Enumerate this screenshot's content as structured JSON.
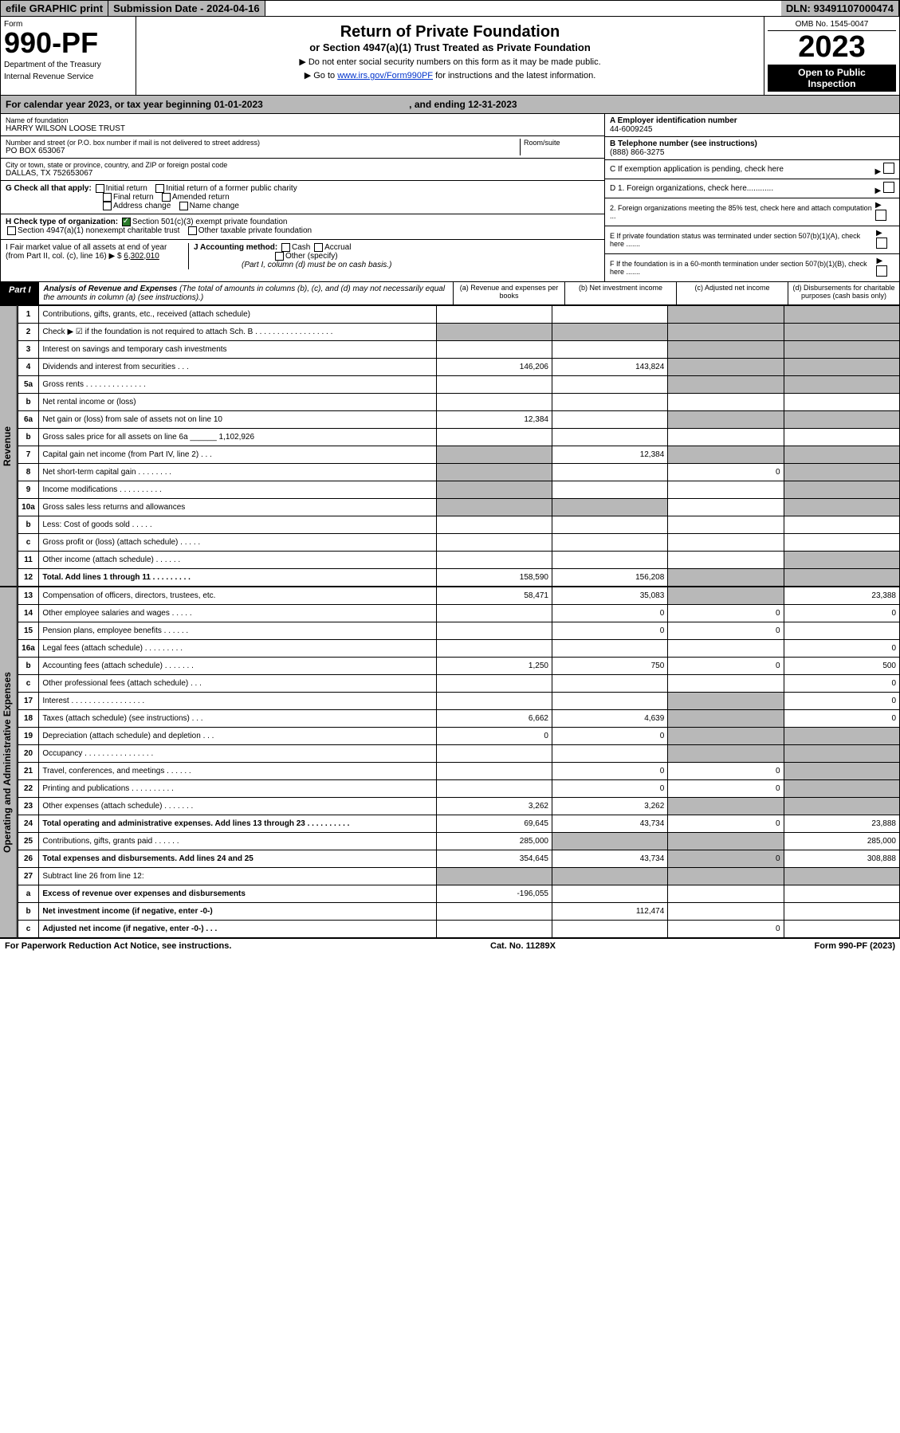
{
  "top": {
    "efile": "efile GRAPHIC print",
    "sub_date": "Submission Date - 2024-04-16",
    "dln": "DLN: 93491107000474"
  },
  "header": {
    "form_word": "Form",
    "form_num": "990-PF",
    "dept1": "Department of the Treasury",
    "dept2": "Internal Revenue Service",
    "title1": "Return of Private Foundation",
    "title2": "or Section 4947(a)(1) Trust Treated as Private Foundation",
    "instr1": "▶ Do not enter social security numbers on this form as it may be made public.",
    "instr2_pre": "▶ Go to ",
    "instr2_link": "www.irs.gov/Form990PF",
    "instr2_post": " for instructions and the latest information.",
    "omb": "OMB No. 1545-0047",
    "year": "2023",
    "open1": "Open to Public",
    "open2": "Inspection"
  },
  "cal": {
    "text": "For calendar year 2023, or tax year beginning 01-01-2023",
    "mid": ", and ending 12-31-2023"
  },
  "id": {
    "name_lbl": "Name of foundation",
    "name": "HARRY WILSON LOOSE TRUST",
    "addr_lbl": "Number and street (or P.O. box number if mail is not delivered to street address)",
    "room_lbl": "Room/suite",
    "addr": "PO BOX 653067",
    "city_lbl": "City or town, state or province, country, and ZIP or foreign postal code",
    "city": "DALLAS, TX  752653067",
    "ein_lbl": "A Employer identification number",
    "ein": "44-6009245",
    "tel_lbl": "B Telephone number (see instructions)",
    "tel": "(888) 866-3275",
    "c_lbl": "C If exemption application is pending, check here",
    "d1_lbl": "D 1. Foreign organizations, check here............",
    "d2_lbl": "2. Foreign organizations meeting the 85% test, check here and attach computation ...",
    "e_lbl": "E If private foundation status was terminated under section 507(b)(1)(A), check here .......",
    "f_lbl": "F If the foundation is in a 60-month termination under section 507(b)(1)(B), check here ......."
  },
  "g": {
    "lbl": "G Check all that apply:",
    "o1": "Initial return",
    "o2": "Initial return of a former public charity",
    "o3": "Final return",
    "o4": "Amended return",
    "o5": "Address change",
    "o6": "Name change"
  },
  "h": {
    "lbl": "H Check type of organization:",
    "o1": "Section 501(c)(3) exempt private foundation",
    "o2": "Section 4947(a)(1) nonexempt charitable trust",
    "o3": "Other taxable private foundation"
  },
  "i": {
    "lbl": "I Fair market value of all assets at end of year (from Part II, col. (c), line 16) ▶ $",
    "val": "6,302,010"
  },
  "j": {
    "lbl": "J Accounting method:",
    "o1": "Cash",
    "o2": "Accrual",
    "o3": "Other (specify)",
    "note": "(Part I, column (d) must be on cash basis.)"
  },
  "part1": {
    "lbl": "Part I",
    "title": "Analysis of Revenue and Expenses",
    "sub": "(The total of amounts in columns (b), (c), and (d) may not necessarily equal the amounts in column (a) (see instructions).)",
    "ca": "(a) Revenue and expenses per books",
    "cb": "(b) Net investment income",
    "cc": "(c) Adjusted net income",
    "cd": "(d) Disbursements for charitable purposes (cash basis only)"
  },
  "side": {
    "rev": "Revenue",
    "exp": "Operating and Administrative Expenses"
  },
  "rows": {
    "1": {
      "n": "1",
      "d": "Contributions, gifts, grants, etc., received (attach schedule)"
    },
    "2": {
      "n": "2",
      "d": "Check ▶ ☑ if the foundation is not required to attach Sch. B  . . . . . . . . . . . . . . . . . ."
    },
    "3": {
      "n": "3",
      "d": "Interest on savings and temporary cash investments"
    },
    "4": {
      "n": "4",
      "d": "Dividends and interest from securities  . . .",
      "a": "146,206",
      "b": "143,824"
    },
    "5a": {
      "n": "5a",
      "d": "Gross rents  . . . . . . . . . . . . . ."
    },
    "5b": {
      "n": "b",
      "d": "Net rental income or (loss)"
    },
    "6a": {
      "n": "6a",
      "d": "Net gain or (loss) from sale of assets not on line 10",
      "a": "12,384"
    },
    "6b": {
      "n": "b",
      "d": "Gross sales price for all assets on line 6a ______ 1,102,926"
    },
    "7": {
      "n": "7",
      "d": "Capital gain net income (from Part IV, line 2)  . . .",
      "b": "12,384"
    },
    "8": {
      "n": "8",
      "d": "Net short-term capital gain  . . . . . . . .",
      "c": "0"
    },
    "9": {
      "n": "9",
      "d": "Income modifications  . . . . . . . . . ."
    },
    "10a": {
      "n": "10a",
      "d": "Gross sales less returns and allowances"
    },
    "10b": {
      "n": "b",
      "d": "Less: Cost of goods sold  . . . . ."
    },
    "10c": {
      "n": "c",
      "d": "Gross profit or (loss) (attach schedule)  . . . . ."
    },
    "11": {
      "n": "11",
      "d": "Other income (attach schedule)  . . . . . ."
    },
    "12": {
      "n": "12",
      "d": "Total. Add lines 1 through 11  . . . . . . . . .",
      "a": "158,590",
      "b": "156,208",
      "bold": true
    },
    "13": {
      "n": "13",
      "d": "Compensation of officers, directors, trustees, etc.",
      "a": "58,471",
      "b": "35,083",
      "dd": "23,388"
    },
    "14": {
      "n": "14",
      "d": "Other employee salaries and wages  . . . . .",
      "b": "0",
      "c": "0",
      "dd": "0"
    },
    "15": {
      "n": "15",
      "d": "Pension plans, employee benefits  . . . . . .",
      "b": "0",
      "c": "0"
    },
    "16a": {
      "n": "16a",
      "d": "Legal fees (attach schedule)  . . . . . . . . .",
      "dd": "0"
    },
    "16b": {
      "n": "b",
      "d": "Accounting fees (attach schedule)  . . . . . . .",
      "a": "1,250",
      "b": "750",
      "c": "0",
      "dd": "500"
    },
    "16c": {
      "n": "c",
      "d": "Other professional fees (attach schedule)  . . .",
      "dd": "0"
    },
    "17": {
      "n": "17",
      "d": "Interest  . . . . . . . . . . . . . . . . .",
      "dd": "0"
    },
    "18": {
      "n": "18",
      "d": "Taxes (attach schedule) (see instructions)  . . .",
      "a": "6,662",
      "b": "4,639",
      "dd": "0"
    },
    "19": {
      "n": "19",
      "d": "Depreciation (attach schedule) and depletion  . . .",
      "a": "0",
      "b": "0"
    },
    "20": {
      "n": "20",
      "d": "Occupancy  . . . . . . . . . . . . . . . ."
    },
    "21": {
      "n": "21",
      "d": "Travel, conferences, and meetings  . . . . . .",
      "b": "0",
      "c": "0"
    },
    "22": {
      "n": "22",
      "d": "Printing and publications  . . . . . . . . . .",
      "b": "0",
      "c": "0"
    },
    "23": {
      "n": "23",
      "d": "Other expenses (attach schedule)  . . . . . . .",
      "a": "3,262",
      "b": "3,262"
    },
    "24": {
      "n": "24",
      "d": "Total operating and administrative expenses. Add lines 13 through 23  . . . . . . . . . .",
      "a": "69,645",
      "b": "43,734",
      "c": "0",
      "dd": "23,888",
      "bold": true
    },
    "25": {
      "n": "25",
      "d": "Contributions, gifts, grants paid  . . . . . .",
      "a": "285,000",
      "dd": "285,000"
    },
    "26": {
      "n": "26",
      "d": "Total expenses and disbursements. Add lines 24 and 25",
      "a": "354,645",
      "b": "43,734",
      "c": "0",
      "dd": "308,888",
      "bold": true
    },
    "27": {
      "n": "27",
      "d": "Subtract line 26 from line 12:"
    },
    "27a": {
      "n": "a",
      "d": "Excess of revenue over expenses and disbursements",
      "a": "-196,055",
      "bold": true
    },
    "27b": {
      "n": "b",
      "d": "Net investment income (if negative, enter -0-)",
      "b": "112,474",
      "bold": true
    },
    "27c": {
      "n": "c",
      "d": "Adjusted net income (if negative, enter -0-)  . . .",
      "c": "0",
      "bold": true
    }
  },
  "footer": {
    "l": "For Paperwork Reduction Act Notice, see instructions.",
    "m": "Cat. No. 11289X",
    "r": "Form 990-PF (2023)"
  }
}
